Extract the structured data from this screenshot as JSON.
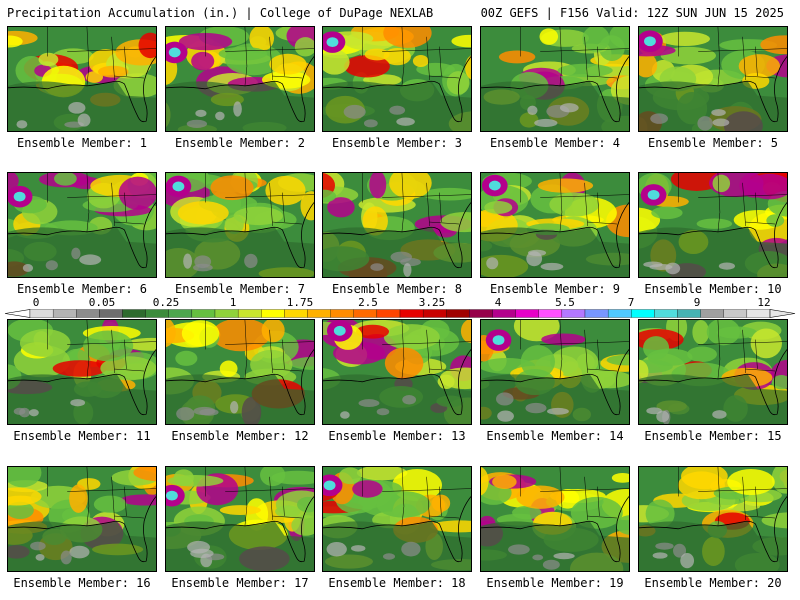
{
  "header": {
    "left": "Precipitation Accumulation (in.) | College of DuPage NEXLAB",
    "right": "00Z GEFS | F156 Valid: 12Z SUN JUN 15 2025"
  },
  "members": [
    "Ensemble Member: 1",
    "Ensemble Member: 2",
    "Ensemble Member: 3",
    "Ensemble Member: 4",
    "Ensemble Member: 5",
    "Ensemble Member: 6",
    "Ensemble Member: 7",
    "Ensemble Member: 8",
    "Ensemble Member: 9",
    "Ensemble Member: 10",
    "Ensemble Member: 11",
    "Ensemble Member: 12",
    "Ensemble Member: 13",
    "Ensemble Member: 14",
    "Ensemble Member: 15",
    "Ensemble Member: 16",
    "Ensemble Member: 17",
    "Ensemble Member: 18",
    "Ensemble Member: 19",
    "Ensemble Member: 20"
  ],
  "colorbar": {
    "tick_labels": [
      "0",
      "0.05",
      "0.25",
      "1",
      "1.75",
      "2.5",
      "3.25",
      "4",
      "5.5",
      "7",
      "9",
      "12"
    ],
    "colors": [
      "#dcdcdc",
      "#b4b4b4",
      "#8c8c8c",
      "#6e6e6e",
      "#2e6b2e",
      "#3c8c3c",
      "#4da64d",
      "#66c040",
      "#8fd23a",
      "#c8e62e",
      "#ffff00",
      "#ffd700",
      "#ffb000",
      "#ff8c00",
      "#ff6a00",
      "#ff4500",
      "#e60000",
      "#c80000",
      "#a00000",
      "#96004b",
      "#b4008c",
      "#e600c8",
      "#ff50ff",
      "#b478ff",
      "#7896ff",
      "#50c8ff",
      "#00ffff",
      "#50dcdc",
      "#46b4b4",
      "#a0a0a0",
      "#c8c8c8",
      "#e6e6e6"
    ]
  }
}
